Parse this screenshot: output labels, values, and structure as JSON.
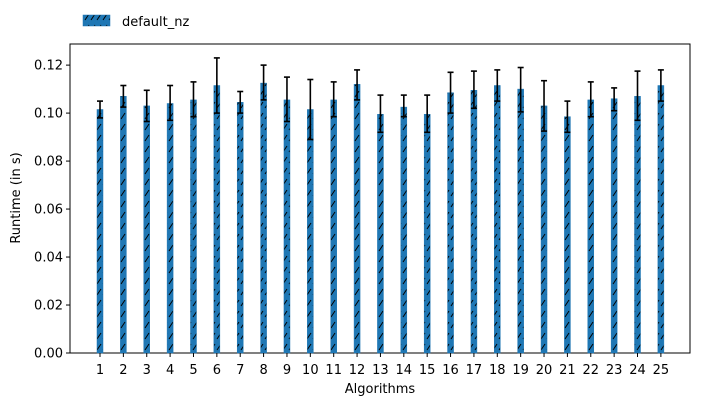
{
  "chart_data": {
    "type": "bar",
    "title": "",
    "xlabel": "Algorithms",
    "ylabel": "Runtime (in s)",
    "ylim": [
      0,
      0.1288
    ],
    "yticks": [
      0.0,
      0.02,
      0.04,
      0.06,
      0.08,
      0.1,
      0.12
    ],
    "ytick_labels": [
      "0.00",
      "0.02",
      "0.04",
      "0.06",
      "0.08",
      "0.10",
      "0.12"
    ],
    "categories": [
      "1",
      "2",
      "3",
      "4",
      "5",
      "6",
      "7",
      "8",
      "9",
      "10",
      "11",
      "12",
      "13",
      "14",
      "15",
      "16",
      "17",
      "18",
      "19",
      "20",
      "21",
      "22",
      "23",
      "24",
      "25"
    ],
    "grid": false,
    "legend_position": "top-left",
    "series": [
      {
        "name": "default_nz",
        "color": "#1f77b4",
        "hatch": "/",
        "values": [
          0.1015,
          0.107,
          0.103,
          0.104,
          0.1055,
          0.1115,
          0.1045,
          0.1125,
          0.1055,
          0.1015,
          0.1055,
          0.112,
          0.0995,
          0.1025,
          0.0995,
          0.1085,
          0.1095,
          0.1115,
          0.11,
          0.103,
          0.0985,
          0.1055,
          0.106,
          0.107,
          0.1115
        ],
        "error_low": [
          0.098,
          0.1025,
          0.0965,
          0.097,
          0.0985,
          0.1,
          0.1,
          0.1055,
          0.0965,
          0.089,
          0.0985,
          0.1055,
          0.092,
          0.0985,
          0.092,
          0.1,
          0.102,
          0.105,
          0.1005,
          0.0925,
          0.092,
          0.0985,
          0.101,
          0.097,
          0.105
        ],
        "error_high": [
          0.105,
          0.1115,
          0.1095,
          0.1115,
          0.113,
          0.123,
          0.109,
          0.12,
          0.115,
          0.114,
          0.113,
          0.118,
          0.1075,
          0.1075,
          0.1075,
          0.117,
          0.1175,
          0.118,
          0.119,
          0.1135,
          0.105,
          0.113,
          0.1105,
          0.1175,
          0.118
        ]
      }
    ]
  }
}
